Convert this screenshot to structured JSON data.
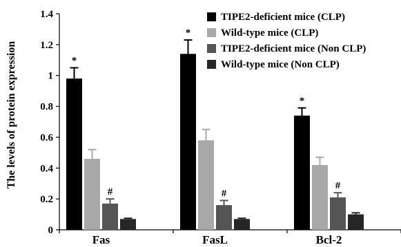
{
  "chart_data": {
    "type": "bar",
    "title": "",
    "xlabel": "",
    "ylabel": "The levels of protein expression",
    "ylim": [
      0,
      1.4
    ],
    "yticks": [
      "0",
      "0.2",
      "0.4",
      "0.6",
      "0.8",
      "1",
      "1.2",
      "1.4"
    ],
    "grid": false,
    "legend_position": "top-right",
    "categories": [
      "Fas",
      "FasL",
      "Bcl-2"
    ],
    "series": [
      {
        "name": "TIPE2-deficient mice (CLP)",
        "color": "#000000",
        "values": [
          0.98,
          1.14,
          0.74
        ],
        "errors": [
          0.07,
          0.09,
          0.05
        ],
        "marks": [
          "*",
          "*",
          "*"
        ]
      },
      {
        "name": "Wild-type mice (CLP)",
        "color": "#a8a8a8",
        "values": [
          0.46,
          0.58,
          0.42
        ],
        "errors": [
          0.06,
          0.07,
          0.05
        ],
        "marks": [
          "",
          "",
          ""
        ]
      },
      {
        "name": "TIPE2-deficient mice (Non CLP)",
        "color": "#555555",
        "values": [
          0.17,
          0.16,
          0.21
        ],
        "errors": [
          0.03,
          0.03,
          0.03
        ],
        "marks": [
          "#",
          "#",
          "#"
        ]
      },
      {
        "name": "Wild-type mice (Non CLP)",
        "color": "#262626",
        "values": [
          0.07,
          0.07,
          0.1
        ],
        "errors": [
          0.005,
          0.005,
          0.01
        ],
        "marks": [
          "",
          "",
          ""
        ]
      }
    ]
  }
}
